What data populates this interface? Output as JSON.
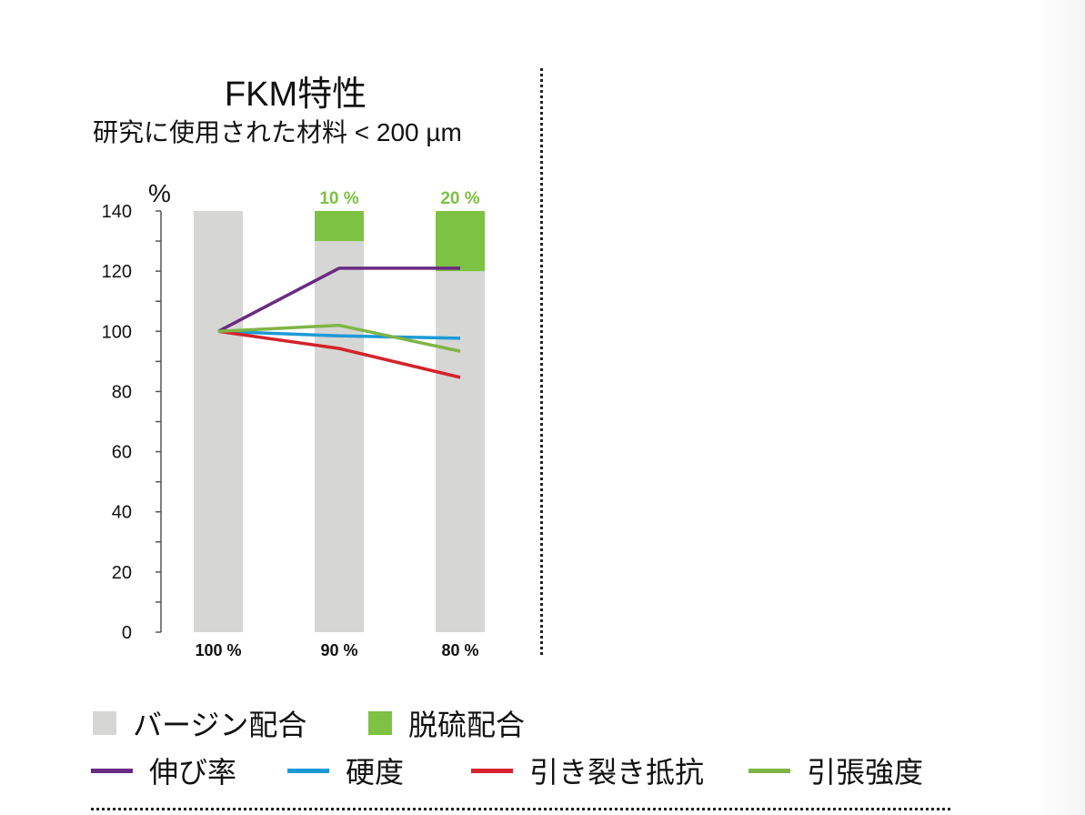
{
  "title": "FKM特性",
  "subtitle": "研究に使用された材料 < 200 µm",
  "chart_data": {
    "type": "bar+line",
    "ylabel": "%",
    "ylim": [
      0,
      140
    ],
    "yticks": [
      "0",
      "20",
      "40",
      "60",
      "80",
      "100",
      "120",
      "140"
    ],
    "categories": [
      "100 %",
      "90 %",
      "80 %"
    ],
    "bars": {
      "virgin": {
        "name": "バージン配合",
        "color": "#d6d6d5",
        "values": [
          140,
          130,
          120
        ]
      },
      "devulc": {
        "name": "脱硫配合",
        "color": "#7dc243",
        "values": [
          0,
          10,
          20
        ],
        "labels": [
          "",
          "10 %",
          "20 %"
        ]
      }
    },
    "series": [
      {
        "name": "伸び率",
        "color": "#6b2a83",
        "values": [
          100,
          121,
          121
        ]
      },
      {
        "name": "硬度",
        "color": "#1c9ad6",
        "values": [
          100,
          98.5,
          97.7
        ]
      },
      {
        "name": "引き裂き抵抗",
        "color": "#d4232a",
        "values": [
          100,
          94.3,
          84.7
        ]
      },
      {
        "name": "引張強度",
        "color": "#7fb546",
        "values": [
          100,
          102,
          93.4
        ]
      }
    ]
  }
}
